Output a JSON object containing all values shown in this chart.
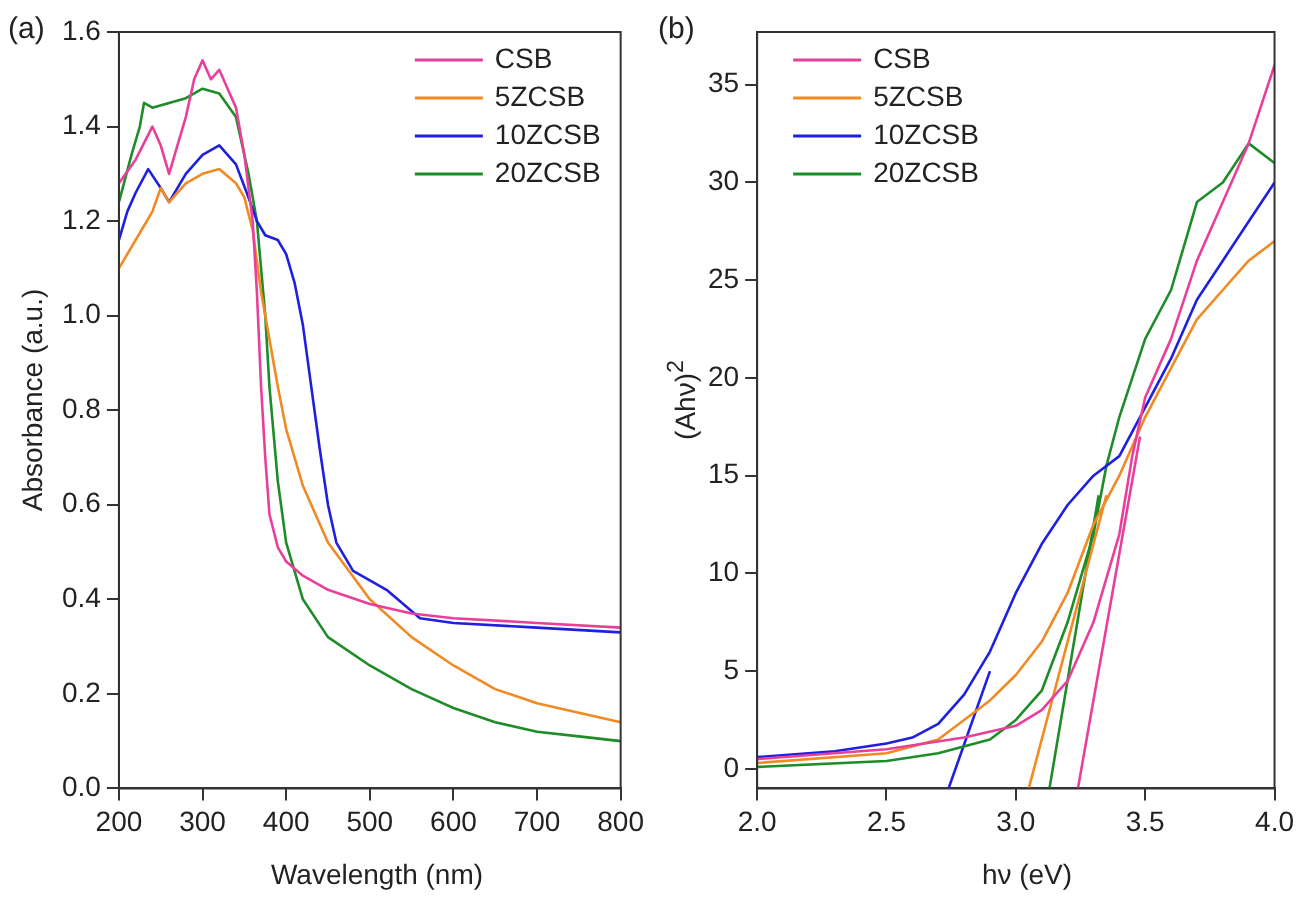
{
  "chart_data": [
    {
      "type": "line",
      "title": "(a)",
      "xlabel": "Wavelength (nm)",
      "ylabel": "Absorbance (a.u.)",
      "xlim": [
        200,
        800
      ],
      "xticks": [
        200,
        300,
        400,
        500,
        600,
        700,
        800
      ],
      "ylim": [
        0,
        1.6
      ],
      "yticks": [
        {
          "value": 0,
          "label": "0.0"
        },
        0.2,
        0.4,
        0.6,
        0.8,
        {
          "value": 1,
          "label": "1.0"
        },
        1.2,
        1.4,
        1.6
      ],
      "grid": false,
      "legend": "top right",
      "marker": "none",
      "line_style": "solid",
      "series": [
        {
          "name": "CSB",
          "color": "#e8409a",
          "x": [
            200,
            220,
            240,
            250,
            260,
            270,
            280,
            290,
            300,
            310,
            320,
            330,
            340,
            350,
            360,
            365,
            370,
            375,
            380,
            390,
            400,
            420,
            450,
            500,
            550,
            600,
            700,
            800
          ],
          "values": [
            1.28,
            1.33,
            1.4,
            1.36,
            1.3,
            1.36,
            1.42,
            1.5,
            1.54,
            1.5,
            1.52,
            1.48,
            1.44,
            1.34,
            1.2,
            1.05,
            0.85,
            0.7,
            0.58,
            0.51,
            0.48,
            0.45,
            0.42,
            0.39,
            0.37,
            0.36,
            0.35,
            0.34
          ]
        },
        {
          "name": "5ZCSB",
          "color": "#f08a24",
          "x": [
            200,
            220,
            240,
            250,
            260,
            280,
            300,
            320,
            340,
            350,
            360,
            370,
            380,
            390,
            400,
            420,
            450,
            500,
            550,
            600,
            650,
            700,
            750,
            800
          ],
          "values": [
            1.1,
            1.16,
            1.22,
            1.27,
            1.24,
            1.28,
            1.3,
            1.31,
            1.28,
            1.25,
            1.18,
            1.05,
            0.95,
            0.85,
            0.76,
            0.64,
            0.52,
            0.4,
            0.32,
            0.26,
            0.21,
            0.18,
            0.16,
            0.14
          ]
        },
        {
          "name": "10ZCSB",
          "color": "#1f1fe0",
          "x": [
            200,
            210,
            220,
            235,
            250,
            260,
            280,
            300,
            320,
            340,
            355,
            365,
            375,
            390,
            400,
            410,
            420,
            430,
            440,
            450,
            460,
            480,
            500,
            520,
            540,
            560,
            600,
            700,
            800
          ],
          "values": [
            1.16,
            1.22,
            1.26,
            1.31,
            1.27,
            1.24,
            1.3,
            1.34,
            1.36,
            1.32,
            1.25,
            1.2,
            1.17,
            1.16,
            1.13,
            1.07,
            0.98,
            0.85,
            0.72,
            0.6,
            0.52,
            0.46,
            0.44,
            0.42,
            0.39,
            0.36,
            0.35,
            0.34,
            0.33
          ]
        },
        {
          "name": "20ZCSB",
          "color": "#1e8c28",
          "x": [
            200,
            215,
            225,
            230,
            240,
            260,
            280,
            300,
            320,
            340,
            355,
            365,
            375,
            380,
            390,
            400,
            420,
            450,
            500,
            550,
            600,
            650,
            700,
            750,
            800
          ],
          "values": [
            1.24,
            1.34,
            1.4,
            1.45,
            1.44,
            1.45,
            1.46,
            1.48,
            1.47,
            1.42,
            1.3,
            1.2,
            1.0,
            0.85,
            0.65,
            0.52,
            0.4,
            0.32,
            0.26,
            0.21,
            0.17,
            0.14,
            0.12,
            0.11,
            0.1
          ]
        }
      ]
    },
    {
      "type": "line",
      "title": "(b)",
      "xlabel": "hν (eV)",
      "ylabel": "(Ahν)$^{2}$",
      "xlim": [
        2,
        4
      ],
      "xticks": [
        {
          "value": 2,
          "label": "2.0"
        },
        2.5,
        {
          "value": 3,
          "label": "3.0"
        },
        3.5,
        {
          "value": 4,
          "label": "4.0"
        }
      ],
      "ylim": [
        -1,
        37.7
      ],
      "yticks": [
        0,
        5,
        10,
        15,
        20,
        25,
        30,
        35
      ],
      "grid": false,
      "legend": "top left",
      "marker": "none",
      "line_style": "solid",
      "series": [
        {
          "name": "CSB",
          "color": "#e8409a",
          "x": [
            2.0,
            2.5,
            2.8,
            3.0,
            3.1,
            3.2,
            3.3,
            3.4,
            3.45,
            3.5,
            3.6,
            3.7,
            3.8,
            3.9,
            4.0
          ],
          "values": [
            0.5,
            1.0,
            1.6,
            2.2,
            3.0,
            4.5,
            7.5,
            12,
            16,
            19,
            22,
            26,
            29,
            32,
            36
          ]
        },
        {
          "name": "5ZCSB",
          "color": "#f08a24",
          "x": [
            2.0,
            2.5,
            2.7,
            2.8,
            2.9,
            3.0,
            3.1,
            3.2,
            3.3,
            3.4,
            3.5,
            3.6,
            3.7,
            3.8,
            3.9,
            4.0
          ],
          "values": [
            0.3,
            0.8,
            1.5,
            2.5,
            3.5,
            4.8,
            6.5,
            9,
            12.5,
            15,
            18,
            20.5,
            23,
            24.5,
            26,
            27
          ]
        },
        {
          "name": "10ZCSB",
          "color": "#1f1fe0",
          "x": [
            2.0,
            2.3,
            2.5,
            2.6,
            2.7,
            2.8,
            2.9,
            3.0,
            3.1,
            3.2,
            3.3,
            3.4,
            3.5,
            3.6,
            3.7,
            3.8,
            3.9,
            4.0
          ],
          "values": [
            0.6,
            0.9,
            1.3,
            1.6,
            2.3,
            3.8,
            6,
            9,
            11.5,
            13.5,
            15,
            16,
            18.5,
            21,
            24,
            26,
            28,
            30
          ]
        },
        {
          "name": "20ZCSB",
          "color": "#1e8c28",
          "x": [
            2.0,
            2.5,
            2.7,
            2.9,
            3.0,
            3.1,
            3.2,
            3.3,
            3.35,
            3.4,
            3.5,
            3.6,
            3.7,
            3.8,
            3.9,
            4.0
          ],
          "values": [
            0.1,
            0.4,
            0.8,
            1.5,
            2.5,
            4,
            7.5,
            12,
            15.5,
            18,
            22,
            24.5,
            29,
            30,
            32,
            31
          ]
        },
        {
          "type": "line",
          "color": "#e8409a",
          "x": [
            3.24,
            3.48
          ],
          "values": [
            -1,
            17
          ]
        },
        {
          "type": "line",
          "color": "#f08a24",
          "x": [
            3.05,
            3.35
          ],
          "values": [
            -1,
            14
          ]
        },
        {
          "type": "line",
          "color": "#1f1fe0",
          "x": [
            2.74,
            2.9
          ],
          "values": [
            -1,
            5
          ]
        },
        {
          "type": "line",
          "color": "#1e8c28",
          "x": [
            3.13,
            3.32
          ],
          "values": [
            -1,
            14
          ]
        }
      ]
    }
  ]
}
